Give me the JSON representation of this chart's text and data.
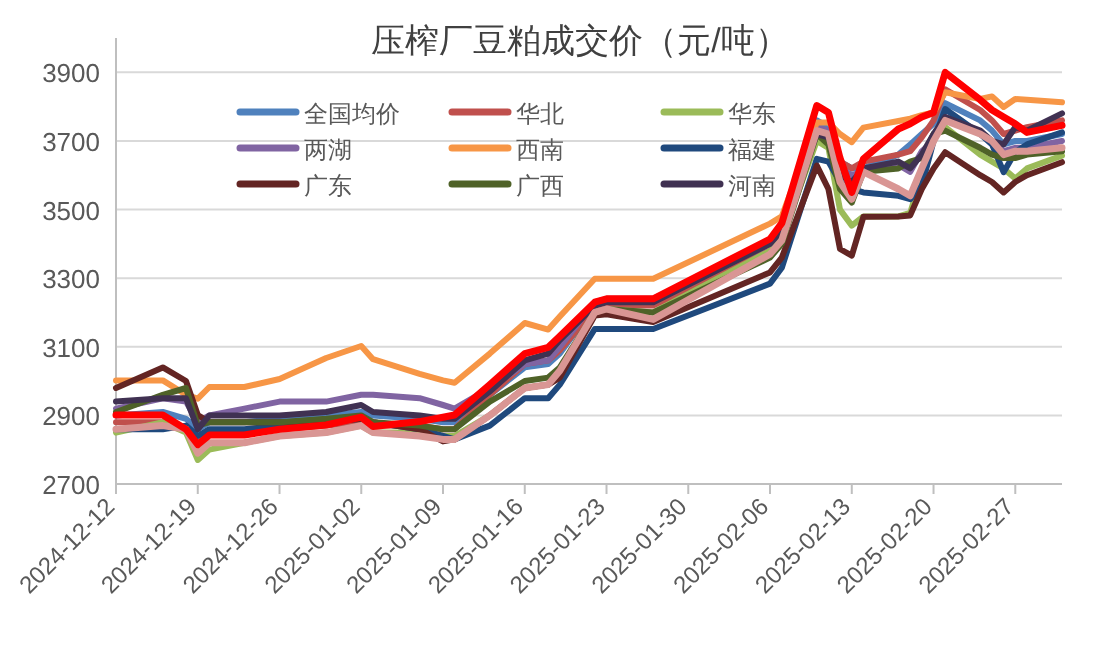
{
  "chart_data": {
    "type": "line",
    "title": "压榨厂豆粕成交价（元/吨）",
    "x": [
      "2024-12-12",
      "2024-12-16",
      "2024-12-18",
      "2024-12-19",
      "2024-12-20",
      "2024-12-23",
      "2024-12-26",
      "2024-12-30",
      "2025-01-02",
      "2025-01-03",
      "2025-01-07",
      "2025-01-09",
      "2025-01-10",
      "2025-01-13",
      "2025-01-16",
      "2025-01-18",
      "2025-01-19",
      "2025-01-22",
      "2025-01-23",
      "2025-01-27",
      "2025-02-06",
      "2025-02-07",
      "2025-02-10",
      "2025-02-11",
      "2025-02-12",
      "2025-02-13",
      "2025-02-14",
      "2025-02-17",
      "2025-02-18",
      "2025-02-19",
      "2025-02-20",
      "2025-02-21",
      "2025-02-24",
      "2025-02-25",
      "2025-02-26",
      "2025-02-27",
      "2025-02-28",
      "2025-03-03"
    ],
    "series": [
      {
        "name": "全国均价",
        "color": "#4f81bd",
        "values": [
          2900,
          2910,
          2890,
          2860,
          2880,
          2880,
          2890,
          2900,
          2910,
          2900,
          2890,
          2880,
          2880,
          2960,
          3040,
          3050,
          3080,
          3220,
          3230,
          3230,
          3380,
          3420,
          3760,
          3740,
          3640,
          3620,
          3620,
          3660,
          3690,
          3720,
          3750,
          3810,
          3760,
          3730,
          3690,
          3700,
          3700,
          3720
        ]
      },
      {
        "name": "华北",
        "color": "#c0504d",
        "values": [
          2880,
          2880,
          2860,
          2820,
          2850,
          2850,
          2860,
          2870,
          2880,
          2870,
          2870,
          2860,
          2860,
          2960,
          3050,
          3060,
          3090,
          3210,
          3220,
          3220,
          3380,
          3420,
          3740,
          3720,
          3640,
          3620,
          3640,
          3660,
          3670,
          3710,
          3760,
          3850,
          3790,
          3760,
          3720,
          3730,
          3740,
          3760
        ]
      },
      {
        "name": "华东",
        "color": "#9bbb59",
        "values": [
          2850,
          2880,
          2850,
          2770,
          2800,
          2820,
          2840,
          2850,
          2870,
          2850,
          2850,
          2840,
          2840,
          2900,
          2980,
          2990,
          3030,
          3200,
          3210,
          3200,
          3380,
          3420,
          3700,
          3680,
          3500,
          3453,
          3480,
          3480,
          3490,
          3600,
          3720,
          3740,
          3660,
          3640,
          3620,
          3590,
          3620,
          3657
        ]
      },
      {
        "name": "两湖",
        "color": "#8064a2",
        "values": [
          2920,
          2950,
          2940,
          2880,
          2900,
          2920,
          2940,
          2940,
          2960,
          2960,
          2950,
          2930,
          2920,
          2980,
          3050,
          3060,
          3100,
          3230,
          3240,
          3240,
          3400,
          3440,
          3740,
          3730,
          3620,
          3600,
          3610,
          3630,
          3610,
          3670,
          3700,
          3770,
          3720,
          3700,
          3670,
          3680,
          3680,
          3700
        ]
      },
      {
        "name": "西南",
        "color": "#f79646",
        "values": [
          3002,
          3002,
          2960,
          2949,
          2983,
          2983,
          3006,
          3067,
          3102,
          3064,
          3021,
          3002,
          2995,
          3080,
          3169,
          3150,
          3188,
          3298,
          3298,
          3298,
          3459,
          3480,
          3754,
          3754,
          3720,
          3696,
          3739,
          3758,
          3765,
          3775,
          3783,
          3842,
          3822,
          3830,
          3799,
          3822,
          3820,
          3813
        ]
      },
      {
        "name": "福建",
        "color": "#1f497d",
        "values": [
          2860,
          2860,
          2870,
          2840,
          2860,
          2860,
          2870,
          2880,
          2890,
          2880,
          2860,
          2840,
          2830,
          2870,
          2950,
          2950,
          2990,
          3152,
          3152,
          3152,
          3284,
          3330,
          3648,
          3640,
          3580,
          3560,
          3550,
          3540,
          3530,
          3570,
          3700,
          3793,
          3720,
          3690,
          3609,
          3667,
          3690,
          3725
        ]
      },
      {
        "name": "广东",
        "color": "#632523",
        "values": [
          2980,
          3040,
          3000,
          2901,
          2880,
          2880,
          2880,
          2880,
          2890,
          2880,
          2860,
          2824,
          2830,
          2900,
          2980,
          2990,
          3010,
          3191,
          3195,
          3172,
          3317,
          3360,
          3628,
          3560,
          3385,
          3366,
          3479,
          3480,
          3483,
          3560,
          3620,
          3667,
          3600,
          3580,
          3550,
          3580,
          3600,
          3638
        ]
      },
      {
        "name": "广西",
        "color": "#4f6228",
        "values": [
          2910,
          2960,
          2980,
          2870,
          2880,
          2880,
          2880,
          2890,
          2900,
          2880,
          2870,
          2860,
          2860,
          2940,
          3000,
          3010,
          3040,
          3200,
          3210,
          3200,
          3360,
          3400,
          3720,
          3690,
          3560,
          3520,
          3610,
          3620,
          3640,
          3650,
          3720,
          3730,
          3680,
          3660,
          3650,
          3650,
          3660,
          3670
        ]
      },
      {
        "name": "河南",
        "color": "#403152",
        "values": [
          2940,
          2950,
          2950,
          2860,
          2900,
          2900,
          2900,
          2910,
          2930,
          2910,
          2900,
          2890,
          2890,
          2970,
          3060,
          3080,
          3120,
          3220,
          3230,
          3230,
          3400,
          3440,
          3720,
          3710,
          3600,
          3580,
          3620,
          3640,
          3620,
          3660,
          3720,
          3770,
          3730,
          3700,
          3690,
          3740,
          3730,
          3780
        ]
      },
      {
        "color": "#d99694",
        "values": [
          2860,
          2870,
          2860,
          2790,
          2820,
          2820,
          2840,
          2850,
          2870,
          2850,
          2840,
          2830,
          2830,
          2900,
          2980,
          2990,
          3030,
          3200,
          3210,
          3180,
          3370,
          3410,
          3730,
          3720,
          3580,
          3530,
          3610,
          3560,
          3540,
          3620,
          3700,
          3760,
          3720,
          3700,
          3660,
          3670,
          3670,
          3680
        ]
      },
      {
        "color": "#ff0000",
        "values": [
          2901,
          2901,
          2860,
          2815,
          2843,
          2843,
          2860,
          2872,
          2895,
          2868,
          2882,
          2895,
          2901,
          2990,
          3080,
          3098,
          3130,
          3230,
          3240,
          3240,
          3414,
          3460,
          3803,
          3783,
          3650,
          3550,
          3648,
          3735,
          3750,
          3770,
          3783,
          3900,
          3820,
          3790,
          3770,
          3750,
          3725,
          3745
        ]
      }
    ],
    "xlim": [
      "2024-12-12",
      "2025-03-03"
    ],
    "xticks": [
      "2024-12-12",
      "2024-12-19",
      "2024-12-26",
      "2025-01-02",
      "2025-01-09",
      "2025-01-16",
      "2025-01-23",
      "2025-01-30",
      "2025-02-06",
      "2025-02-13",
      "2025-02-20",
      "2025-02-27"
    ],
    "ylim": [
      2700,
      4000
    ],
    "yticks": [
      2700,
      2900,
      3100,
      3300,
      3500,
      3700,
      3900
    ],
    "grid": "y",
    "legend": "top left"
  }
}
